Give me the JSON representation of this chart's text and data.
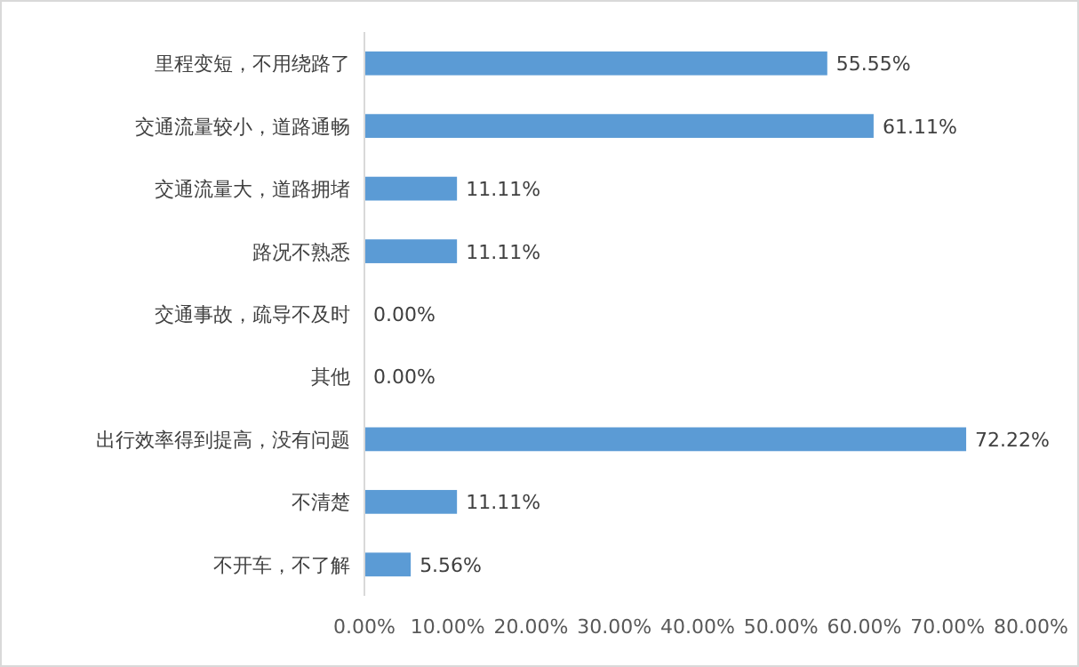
{
  "chart_data": {
    "type": "bar",
    "orientation": "horizontal",
    "categories": [
      "里程变短，不用绕路了",
      "交通流量较小，道路通畅",
      "交通流量大，道路拥堵",
      "路况不熟悉",
      "交通事故，疏导不及时",
      "其他",
      "出行效率得到提高，没有问题",
      "不清楚",
      "不开车，不了解"
    ],
    "values": [
      55.55,
      61.11,
      11.11,
      11.11,
      0,
      0,
      72.22,
      11.11,
      5.56
    ],
    "value_labels": [
      "55.55%",
      "61.11%",
      "11.11%",
      "11.11%",
      "0.00%",
      "0.00%",
      "72.22%",
      "11.11%",
      "5.56%"
    ],
    "color": "#5b9bd5",
    "xlim": [
      0,
      80
    ],
    "xticks": [
      {
        "value": 0,
        "label": "0.00%"
      },
      {
        "value": 10,
        "label": "10.00%"
      },
      {
        "value": 20,
        "label": "20.00%"
      },
      {
        "value": 30,
        "label": "30.00%"
      },
      {
        "value": 40,
        "label": "40.00%"
      },
      {
        "value": 50,
        "label": "50.00%"
      },
      {
        "value": 60,
        "label": "60.00%"
      },
      {
        "value": 70,
        "label": "70.00%"
      },
      {
        "value": 80,
        "label": "80.00%"
      }
    ]
  }
}
